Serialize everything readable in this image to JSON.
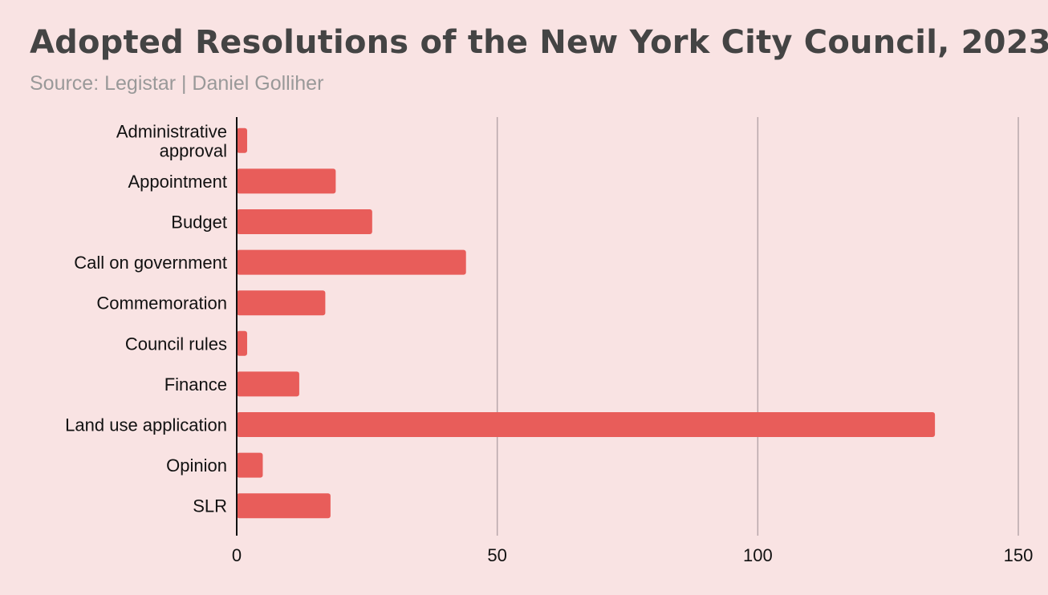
{
  "chart_data": {
    "type": "bar",
    "orientation": "horizontal",
    "title": "Adopted Resolutions of the New York City Council, 2023",
    "subtitle": "Source: Legistar | Daniel Golliher",
    "categories": [
      [
        "Administrative",
        "approval"
      ],
      [
        "Appointment"
      ],
      [
        "Budget"
      ],
      [
        "Call on government"
      ],
      [
        "Commemoration"
      ],
      [
        "Council rules"
      ],
      [
        "Finance"
      ],
      [
        "Land use application"
      ],
      [
        "Opinion"
      ],
      [
        "SLR"
      ]
    ],
    "values": [
      2,
      19,
      26,
      44,
      17,
      2,
      12,
      134,
      5,
      18
    ],
    "xlim": [
      0,
      150
    ],
    "xticks": [
      0,
      50,
      100,
      150
    ],
    "xtick_labels": [
      "0",
      "50",
      "100",
      "150"
    ],
    "grid": true,
    "legend": "none",
    "colors": {
      "bar": "#e85d5a",
      "background": "#f9e3e3",
      "grid": "#b8a7ab",
      "axis": "#111111"
    }
  }
}
